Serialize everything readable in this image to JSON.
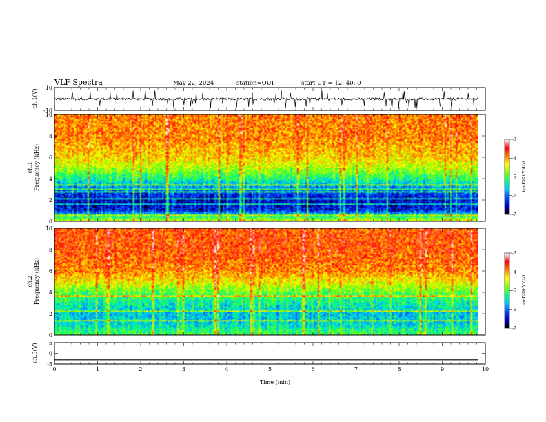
{
  "header": {
    "title": "VLF Spectra",
    "date": "May 22, 2024",
    "station": "station=OUI",
    "start_ut": "start UT =  12: 40: 0"
  },
  "panels": {
    "ch1_waveform": {
      "ylabel": "ch.1(V)"
    },
    "ch1_spectrogram": {
      "ylabel_line1": "ch.1",
      "ylabel_line2": "Frequency (kHz)",
      "colorbar_label": "log(PSD)(V²/Hz)"
    },
    "ch2_spectrogram": {
      "ylabel_line1": "ch.2",
      "ylabel_line2": "Frequency (kHz)",
      "colorbar_label": "log(PSD)(V²/Hz)"
    },
    "ch3_waveform": {
      "ylabel": "ch.3(V)"
    }
  },
  "colors": {
    "colormap": [
      "#000000",
      "#0000c8",
      "#0050ff",
      "#00c8ff",
      "#00ff80",
      "#80ff00",
      "#ffff00",
      "#ff8000",
      "#ff0000",
      "#ffffff"
    ],
    "trace": "#000000"
  },
  "chart_data": [
    {
      "type": "line",
      "name": "ch1-waveform",
      "xlabel": "",
      "ylabel": "ch.1(V)",
      "xlim": [
        0,
        10
      ],
      "ylim": [
        -10,
        10
      ],
      "yticks": [
        "10",
        "-10"
      ],
      "data_extent_min": 9.83,
      "description_values": {
        "baseline_v": 0,
        "typical_spread_v": 2,
        "spike_max_v": 8,
        "spike_min_v": -8
      }
    },
    {
      "type": "heatmap",
      "name": "ch1-spectrogram",
      "ylabel": "Frequency (kHz)",
      "xlim": [
        0,
        10
      ],
      "ylim": [
        0,
        10
      ],
      "yticks": [
        "0",
        "2",
        "4",
        "6",
        "8",
        "10"
      ],
      "colorbar": {
        "label": "log(PSD)(V²/Hz)",
        "range": [
          -7,
          -3
        ],
        "ticks": [
          "-3",
          "-4",
          "-5",
          "-6",
          "-7"
        ]
      },
      "profile_log_psd": [
        {
          "freq_khz": 0.0,
          "value": -4.5
        },
        {
          "freq_khz": 1.0,
          "value": -6.4
        },
        {
          "freq_khz": 2.0,
          "value": -6.5
        },
        {
          "freq_khz": 3.0,
          "value": -6.0
        },
        {
          "freq_khz": 4.0,
          "value": -5.2
        },
        {
          "freq_khz": 5.0,
          "value": -4.6
        },
        {
          "freq_khz": 6.0,
          "value": -4.2
        },
        {
          "freq_khz": 8.0,
          "value": -3.9
        },
        {
          "freq_khz": 10.0,
          "value": -3.9
        }
      ],
      "tone_lines_khz": [
        0.5,
        1.5,
        2.1,
        2.7,
        3.0,
        3.4
      ]
    },
    {
      "type": "heatmap",
      "name": "ch2-spectrogram",
      "ylabel": "Frequency (kHz)",
      "xlim": [
        0,
        10
      ],
      "ylim": [
        0,
        10
      ],
      "yticks": [
        "0",
        "2",
        "4",
        "6",
        "8",
        "10"
      ],
      "colorbar": {
        "label": "log(PSD)(V²/Hz)",
        "range": [
          -7,
          -3
        ],
        "ticks": [
          "-3",
          "-4",
          "-5",
          "-6",
          "-7"
        ]
      },
      "profile_log_psd": [
        {
          "freq_khz": 0.0,
          "value": -5.0
        },
        {
          "freq_khz": 1.0,
          "value": -5.5
        },
        {
          "freq_khz": 2.0,
          "value": -5.6
        },
        {
          "freq_khz": 3.0,
          "value": -5.3
        },
        {
          "freq_khz": 4.0,
          "value": -4.9
        },
        {
          "freq_khz": 5.0,
          "value": -4.3
        },
        {
          "freq_khz": 6.0,
          "value": -3.9
        },
        {
          "freq_khz": 8.0,
          "value": -3.7
        },
        {
          "freq_khz": 10.0,
          "value": -3.7
        }
      ],
      "tone_lines_khz": [
        1.3,
        2.2,
        3.6
      ]
    },
    {
      "type": "line",
      "name": "ch3-waveform",
      "xlabel": "Time (min)",
      "ylabel": "ch.3(V)",
      "xlim": [
        0,
        10
      ],
      "ylim": [
        -5,
        5
      ],
      "yticks": [
        "5",
        "0",
        "-5"
      ],
      "xticks": [
        "0",
        "1",
        "2",
        "3",
        "4",
        "5",
        "6",
        "7",
        "8",
        "9",
        "10"
      ],
      "data_extent_min": 9.83,
      "constant_value_v": -3
    }
  ]
}
